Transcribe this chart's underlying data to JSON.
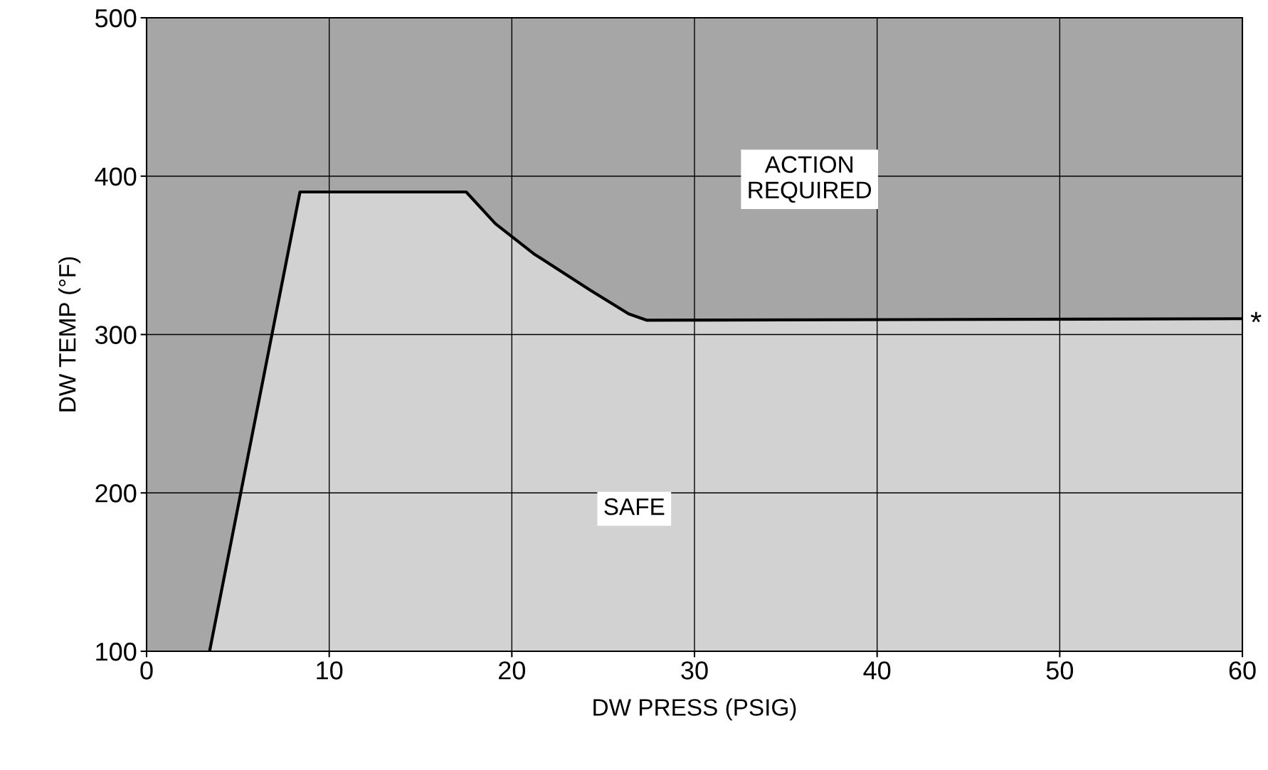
{
  "chart_data": {
    "type": "area",
    "xlabel": "DW PRESS (PSIG)",
    "ylabel": "DW TEMP (°F)",
    "series": [
      {
        "color": "#d2d2d2",
        "x": [
          3.45,
          8.4,
          17.5,
          19.1,
          21.2,
          24.3,
          26.4,
          27.4,
          60
        ],
        "values": [
          100,
          390,
          390,
          370,
          351,
          328,
          313,
          309,
          310
        ]
      }
    ],
    "bands": [
      {
        "axis": "y",
        "from": 100,
        "to": 500,
        "color": "#a6a6a6"
      }
    ],
    "annotations": [
      "ACTION\nREQUIRED",
      "SAFE",
      {
        "text": "*",
        "x": 60,
        "y": 310
      }
    ],
    "xlim": [
      0,
      60
    ],
    "ylim": [
      100,
      500
    ],
    "xticks": [
      0,
      10,
      20,
      30,
      40,
      50,
      60
    ],
    "yticks": [
      100,
      200,
      300,
      400,
      500
    ],
    "grid": true,
    "legend": false
  }
}
